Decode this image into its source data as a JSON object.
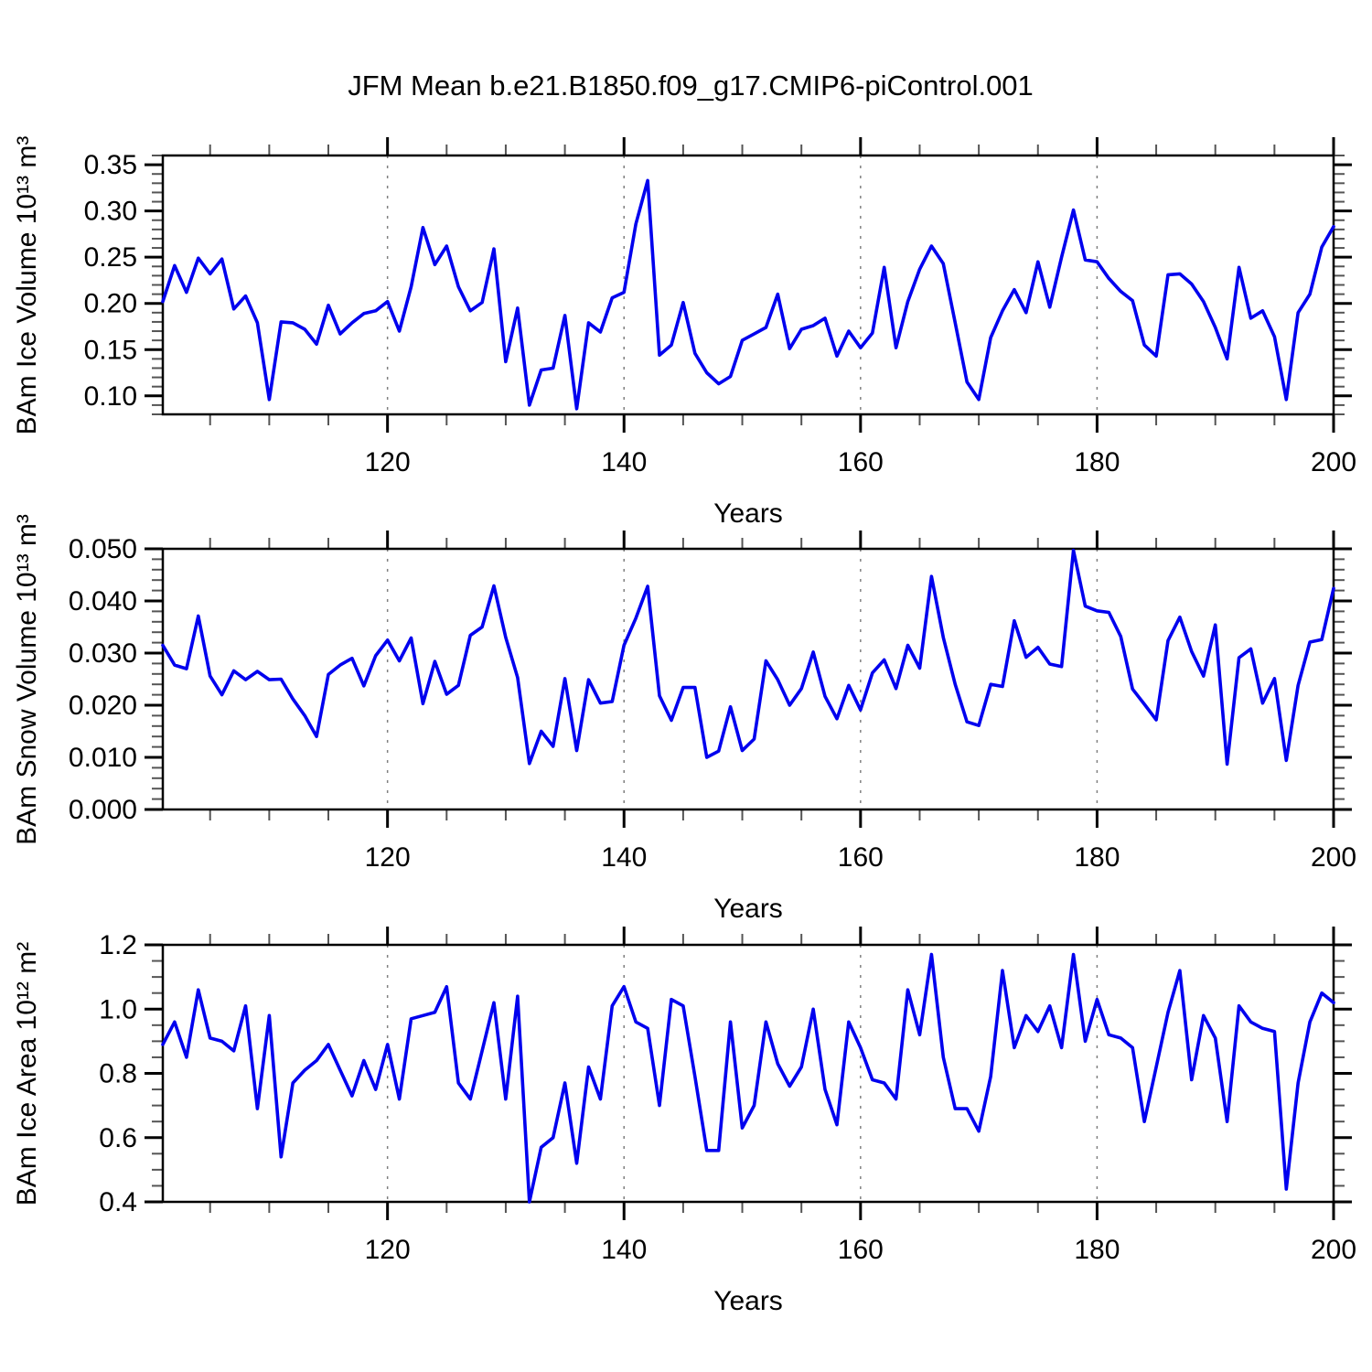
{
  "title": "JFM Mean b.e21.B1850.f09_g17.CMIP6-piControl.001",
  "line_color": "#0000ee",
  "chart_data": [
    {
      "type": "line",
      "ylabel": "BAm Ice Volume 10¹³ m³",
      "xlabel": "Years",
      "x_start": 101,
      "x_end": 200,
      "ylim": [
        0.08,
        0.36
      ],
      "ytick_major_start": 0.1,
      "ytick_major_step": 0.05,
      "ytick_major_count": 6,
      "ytick_decimals": 2,
      "yminor_step": 0.01,
      "xticks": [
        120,
        140,
        160,
        180,
        200
      ],
      "xminor_step": 5,
      "grid_x": [
        120,
        140,
        160,
        180
      ],
      "legend": "none",
      "values": [
        0.202,
        0.241,
        0.212,
        0.249,
        0.232,
        0.248,
        0.194,
        0.208,
        0.179,
        0.096,
        0.18,
        0.179,
        0.172,
        0.156,
        0.198,
        0.167,
        0.179,
        0.189,
        0.192,
        0.202,
        0.17,
        0.218,
        0.282,
        0.242,
        0.262,
        0.218,
        0.192,
        0.201,
        0.259,
        0.137,
        0.195,
        0.09,
        0.128,
        0.13,
        0.187,
        0.086,
        0.179,
        0.169,
        0.206,
        0.212,
        0.286,
        0.333,
        0.144,
        0.155,
        0.201,
        0.146,
        0.125,
        0.113,
        0.121,
        0.16,
        0.167,
        0.174,
        0.21,
        0.151,
        0.172,
        0.176,
        0.184,
        0.143,
        0.17,
        0.152,
        0.168,
        0.239,
        0.152,
        0.202,
        0.237,
        0.262,
        0.243,
        0.179,
        0.115,
        0.096,
        0.163,
        0.192,
        0.215,
        0.19,
        0.245,
        0.196,
        0.25,
        0.301,
        0.247,
        0.245,
        0.227,
        0.213,
        0.203,
        0.155,
        0.143,
        0.231,
        0.232,
        0.221,
        0.202,
        0.174,
        0.14,
        0.239,
        0.184,
        0.192,
        0.164,
        0.096,
        0.19,
        0.21,
        0.261,
        0.283
      ]
    },
    {
      "type": "line",
      "ylabel": "BAm Snow Volume 10¹³ m³",
      "xlabel": "Years",
      "x_start": 101,
      "x_end": 200,
      "ylim": [
        0.0,
        0.05
      ],
      "ytick_major_start": 0.0,
      "ytick_major_step": 0.01,
      "ytick_major_count": 6,
      "ytick_decimals": 3,
      "yminor_step": 0.002,
      "xticks": [
        120,
        140,
        160,
        180,
        200
      ],
      "xminor_step": 5,
      "grid_x": [
        120,
        140,
        160,
        180
      ],
      "legend": "none",
      "values": [
        0.0315,
        0.0277,
        0.027,
        0.0371,
        0.0256,
        0.022,
        0.0266,
        0.0249,
        0.0265,
        0.0249,
        0.025,
        0.0212,
        0.018,
        0.014,
        0.0259,
        0.0277,
        0.029,
        0.0237,
        0.0295,
        0.0325,
        0.0285,
        0.0329,
        0.0203,
        0.0284,
        0.0221,
        0.0238,
        0.0334,
        0.035,
        0.0429,
        0.033,
        0.0253,
        0.0088,
        0.015,
        0.0121,
        0.0251,
        0.0113,
        0.0249,
        0.0204,
        0.0207,
        0.0315,
        0.0367,
        0.0428,
        0.0218,
        0.0171,
        0.0234,
        0.0234,
        0.01,
        0.0112,
        0.0197,
        0.0113,
        0.0135,
        0.0285,
        0.0249,
        0.02,
        0.0232,
        0.0302,
        0.0217,
        0.0174,
        0.0238,
        0.0191,
        0.0262,
        0.0287,
        0.0232,
        0.0315,
        0.0271,
        0.0447,
        0.033,
        0.024,
        0.0168,
        0.0161,
        0.024,
        0.0236,
        0.0362,
        0.0292,
        0.0311,
        0.0279,
        0.0274,
        0.0497,
        0.039,
        0.0381,
        0.0378,
        0.0332,
        0.0231,
        0.0202,
        0.0172,
        0.0324,
        0.0369,
        0.0303,
        0.0256,
        0.0354,
        0.0087,
        0.0291,
        0.0308,
        0.0204,
        0.0251,
        0.0094,
        0.0238,
        0.0321,
        0.0326,
        0.0424
      ]
    },
    {
      "type": "line",
      "ylabel": "BAm Ice Area 10¹² m²",
      "xlabel": "Years",
      "x_start": 101,
      "x_end": 200,
      "ylim": [
        0.4,
        1.2
      ],
      "ytick_major_start": 0.4,
      "ytick_major_step": 0.2,
      "ytick_major_count": 5,
      "ytick_decimals": 1,
      "yminor_step": 0.05,
      "xticks": [
        120,
        140,
        160,
        180,
        200
      ],
      "xminor_step": 5,
      "grid_x": [
        120,
        140,
        160,
        180
      ],
      "legend": "none",
      "values": [
        0.89,
        0.96,
        0.85,
        1.06,
        0.91,
        0.9,
        0.87,
        1.01,
        0.69,
        0.98,
        0.54,
        0.77,
        0.81,
        0.84,
        0.89,
        0.81,
        0.73,
        0.84,
        0.75,
        0.89,
        0.72,
        0.97,
        0.98,
        0.99,
        1.07,
        0.77,
        0.72,
        0.87,
        1.02,
        0.72,
        1.04,
        0.4,
        0.57,
        0.6,
        0.77,
        0.52,
        0.82,
        0.72,
        1.01,
        1.07,
        0.96,
        0.94,
        0.7,
        1.03,
        1.01,
        0.79,
        0.56,
        0.56,
        0.96,
        0.63,
        0.7,
        0.96,
        0.83,
        0.76,
        0.82,
        1.0,
        0.75,
        0.64,
        0.96,
        0.88,
        0.78,
        0.77,
        0.72,
        1.06,
        0.92,
        1.17,
        0.85,
        0.69,
        0.69,
        0.62,
        0.79,
        1.12,
        0.88,
        0.98,
        0.93,
        1.01,
        0.88,
        1.17,
        0.9,
        1.03,
        0.92,
        0.91,
        0.88,
        0.65,
        0.82,
        0.99,
        1.12,
        0.78,
        0.98,
        0.91,
        0.65,
        1.01,
        0.96,
        0.94,
        0.93,
        0.44,
        0.77,
        0.96,
        1.05,
        1.02
      ]
    }
  ]
}
